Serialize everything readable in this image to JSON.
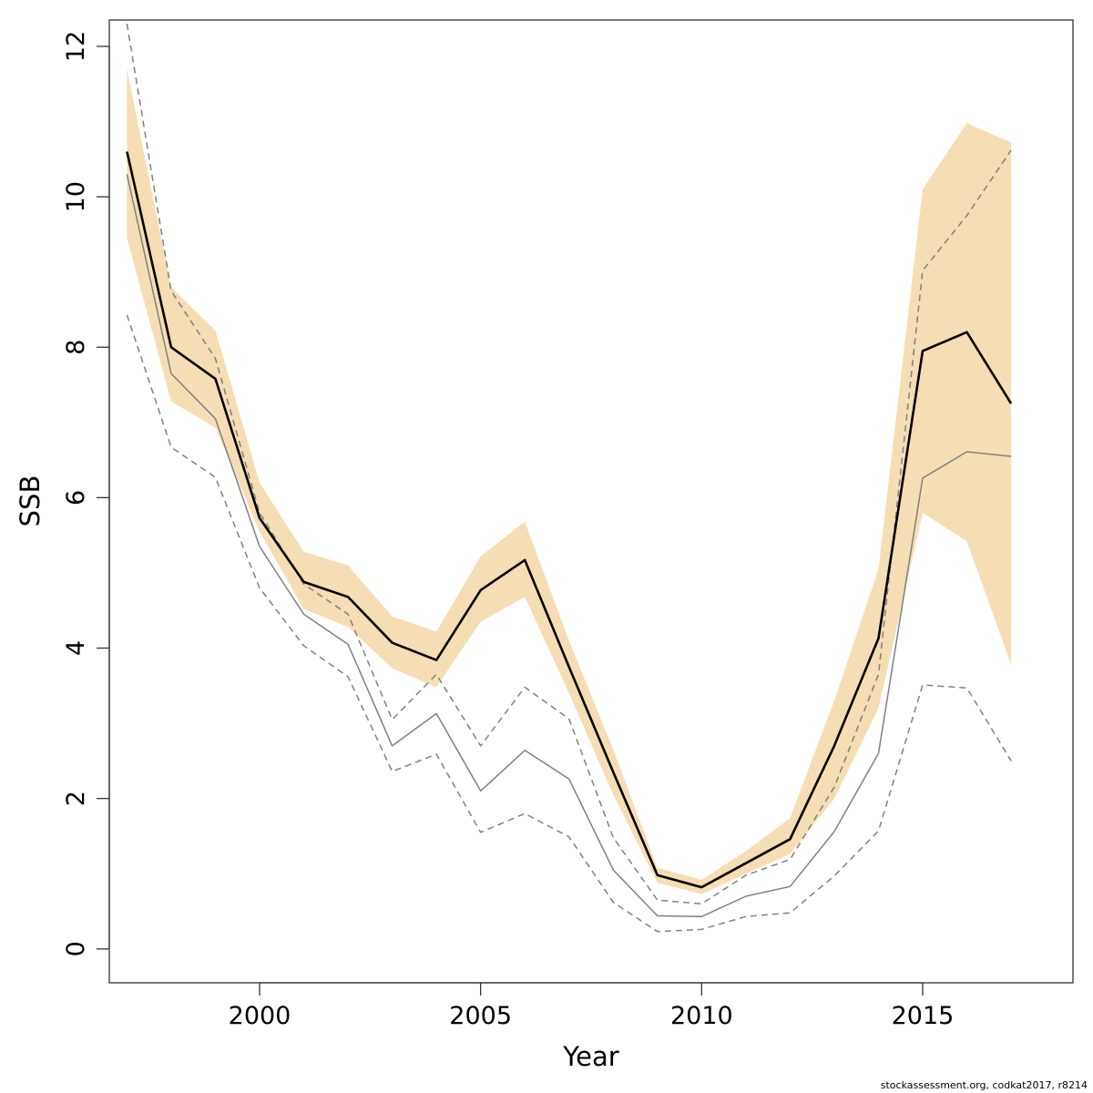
{
  "chart_data": {
    "type": "line",
    "xlabel": "Year",
    "ylabel": "SSB",
    "xlim": [
      1996.6,
      2018.4
    ],
    "ylim": [
      -0.45,
      12.35
    ],
    "x_ticks": [
      2000,
      2005,
      2010,
      2015
    ],
    "y_ticks": [
      0,
      2,
      4,
      6,
      8,
      10,
      12
    ],
    "x": [
      1997,
      1998,
      1999,
      2000,
      2001,
      2002,
      2003,
      2004,
      2005,
      2006,
      2007,
      2008,
      2009,
      2010,
      2011,
      2012,
      2013,
      2014,
      2015,
      2016,
      2017
    ],
    "band": {
      "color": "#f5deb3",
      "lower": [
        9.45,
        7.28,
        6.93,
        5.55,
        4.52,
        4.28,
        3.73,
        3.48,
        4.35,
        4.68,
        3.4,
        2.05,
        0.88,
        0.73,
        1.0,
        1.26,
        2.0,
        3.2,
        5.8,
        5.42,
        3.78
      ],
      "upper": [
        11.7,
        8.8,
        8.22,
        6.2,
        5.28,
        5.1,
        4.42,
        4.22,
        5.22,
        5.68,
        4.1,
        2.65,
        1.08,
        0.92,
        1.3,
        1.74,
        3.3,
        5.05,
        10.1,
        10.98,
        10.72
      ]
    },
    "series": [
      {
        "role": "estimate",
        "color": "#000000",
        "values": [
          10.6,
          8.0,
          7.58,
          5.73,
          4.88,
          4.68,
          4.07,
          3.84,
          4.77,
          5.17,
          3.75,
          2.35,
          0.98,
          0.82,
          1.14,
          1.46,
          2.7,
          4.13,
          7.95,
          8.2,
          7.25
        ]
      },
      {
        "role": "comparison",
        "color": "#808080",
        "values": [
          10.3,
          7.65,
          7.05,
          5.35,
          4.45,
          4.05,
          2.7,
          3.13,
          2.1,
          2.64,
          2.26,
          1.05,
          0.44,
          0.43,
          0.7,
          0.83,
          1.56,
          2.6,
          6.26,
          6.61,
          6.55
        ]
      },
      {
        "role": "comparison-upper",
        "color": "#808080",
        "dashed": true,
        "values": [
          12.3,
          8.75,
          7.85,
          5.8,
          4.85,
          4.45,
          3.05,
          3.65,
          2.7,
          3.48,
          3.06,
          1.48,
          0.65,
          0.6,
          0.98,
          1.19,
          2.15,
          3.65,
          9.02,
          9.75,
          10.62
        ]
      },
      {
        "role": "comparison-lower",
        "color": "#808080",
        "dashed": true,
        "values": [
          8.43,
          6.67,
          6.27,
          4.8,
          4.03,
          3.62,
          2.36,
          2.59,
          1.55,
          1.8,
          1.49,
          0.62,
          0.23,
          0.26,
          0.43,
          0.48,
          0.97,
          1.57,
          3.51,
          3.47,
          2.5
        ]
      }
    ]
  },
  "footnote": "stockassessment.org, codkat2017, r8214"
}
